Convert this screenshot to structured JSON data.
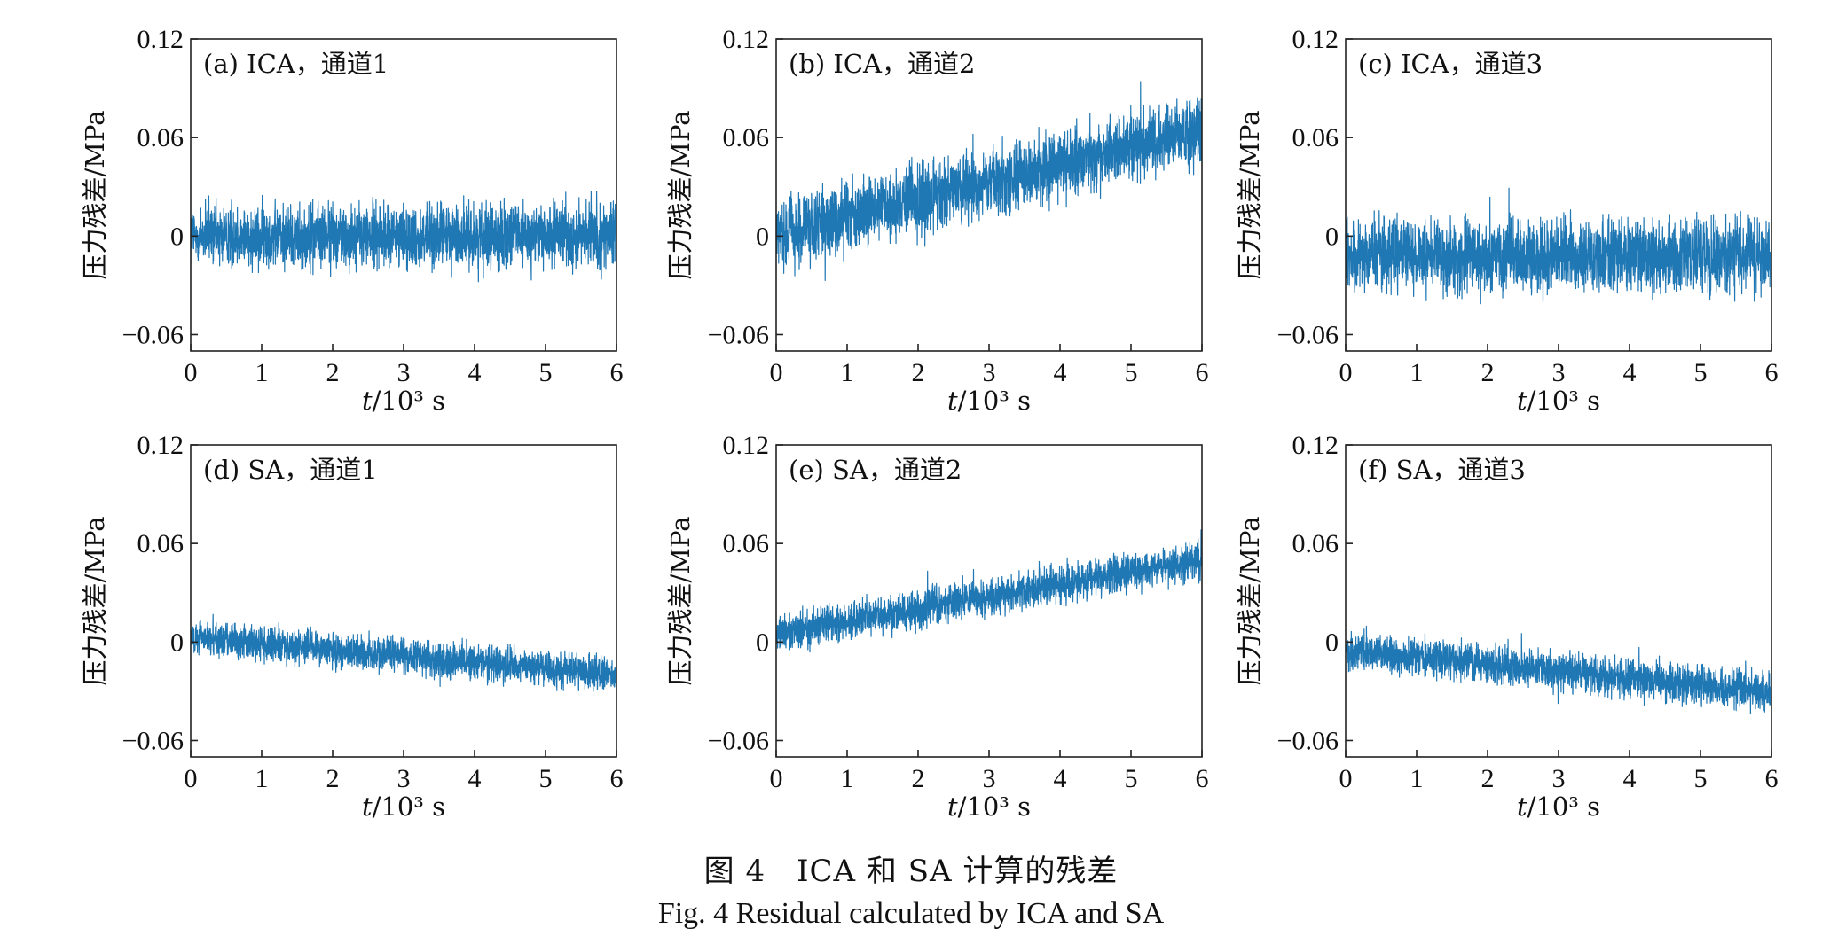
{
  "caption": {
    "cn": "图 4　ICA 和 SA 计算的残差",
    "en": "Fig. 4  Residual calculated by ICA and SA"
  },
  "chart_data": [
    {
      "type": "line",
      "panel_label": "(a) ICA，通道1",
      "xlabel_var": "t",
      "xlabel_unit": "/10³ s",
      "ylabel": "压力残差/MPa",
      "xlim": [
        0,
        6
      ],
      "ylim": [
        -0.07,
        0.12
      ],
      "xticks": [
        0,
        1,
        2,
        3,
        4,
        5,
        6
      ],
      "xtick_labels": [
        "0",
        "1",
        "2",
        "3",
        "4",
        "5",
        "6"
      ],
      "yticks": [
        -0.06,
        0,
        0.06,
        0.12
      ],
      "ytick_labels": [
        "−0.06",
        "0",
        "0.06",
        "0.12"
      ],
      "trend": {
        "x": [
          0,
          6
        ],
        "y": [
          0,
          0
        ]
      },
      "noise_band_half_width": 0.028,
      "color": "#1f77b4"
    },
    {
      "type": "line",
      "panel_label": "(b) ICA，通道2",
      "xlabel_var": "t",
      "xlabel_unit": "/10³ s",
      "ylabel": "压力残差/MPa",
      "xlim": [
        0,
        6
      ],
      "ylim": [
        -0.07,
        0.12
      ],
      "xticks": [
        0,
        1,
        2,
        3,
        4,
        5,
        6
      ],
      "xtick_labels": [
        "0",
        "1",
        "2",
        "3",
        "4",
        "5",
        "6"
      ],
      "yticks": [
        -0.06,
        0,
        0.06,
        0.12
      ],
      "ytick_labels": [
        "−0.06",
        "0",
        "0.06",
        "0.12"
      ],
      "trend": {
        "x": [
          0,
          6
        ],
        "y": [
          0,
          0.065
        ]
      },
      "noise_band_half_width": 0.03,
      "color": "#1f77b4"
    },
    {
      "type": "line",
      "panel_label": "(c) ICA，通道3",
      "xlabel_var": "t",
      "xlabel_unit": "/10³ s",
      "ylabel": "压力残差/MPa",
      "xlim": [
        0,
        6
      ],
      "ylim": [
        -0.07,
        0.12
      ],
      "xticks": [
        0,
        1,
        2,
        3,
        4,
        5,
        6
      ],
      "xtick_labels": [
        "0",
        "1",
        "2",
        "3",
        "4",
        "5",
        "6"
      ],
      "yticks": [
        -0.06,
        0,
        0.06,
        0.12
      ],
      "ytick_labels": [
        "−0.06",
        "0",
        "0.06",
        "0.12"
      ],
      "trend": {
        "x": [
          0,
          6
        ],
        "y": [
          -0.012,
          -0.012
        ]
      },
      "noise_band_half_width": 0.032,
      "color": "#1f77b4"
    },
    {
      "type": "line",
      "panel_label": "(d) SA，通道1",
      "xlabel_var": "t",
      "xlabel_unit": "/10³ s",
      "ylabel": "压力残差/MPa",
      "xlim": [
        0,
        6
      ],
      "ylim": [
        -0.07,
        0.12
      ],
      "xticks": [
        0,
        1,
        2,
        3,
        4,
        5,
        6
      ],
      "xtick_labels": [
        "0",
        "1",
        "2",
        "3",
        "4",
        "5",
        "6"
      ],
      "yticks": [
        -0.06,
        0,
        0.06,
        0.12
      ],
      "ytick_labels": [
        "−0.06",
        "0",
        "0.06",
        "0.12"
      ],
      "trend": {
        "x": [
          0,
          6
        ],
        "y": [
          0.003,
          -0.02
        ]
      },
      "noise_band_half_width": 0.015,
      "color": "#1f77b4"
    },
    {
      "type": "line",
      "panel_label": "(e) SA，通道2",
      "xlabel_var": "t",
      "xlabel_unit": "/10³ s",
      "ylabel": "压力残差/MPa",
      "xlim": [
        0,
        6
      ],
      "ylim": [
        -0.07,
        0.12
      ],
      "xticks": [
        0,
        1,
        2,
        3,
        4,
        5,
        6
      ],
      "xtick_labels": [
        "0",
        "1",
        "2",
        "3",
        "4",
        "5",
        "6"
      ],
      "yticks": [
        -0.06,
        0,
        0.06,
        0.12
      ],
      "ytick_labels": [
        "−0.06",
        "0",
        "0.06",
        "0.12"
      ],
      "trend": {
        "x": [
          0,
          6
        ],
        "y": [
          0.005,
          0.05
        ]
      },
      "noise_band_half_width": 0.016,
      "color": "#1f77b4"
    },
    {
      "type": "line",
      "panel_label": "(f) SA，通道3",
      "xlabel_var": "t",
      "xlabel_unit": "/10³ s",
      "ylabel": "压力残差/MPa",
      "xlim": [
        0,
        6
      ],
      "ylim": [
        -0.07,
        0.12
      ],
      "xticks": [
        0,
        1,
        2,
        3,
        4,
        5,
        6
      ],
      "xtick_labels": [
        "0",
        "1",
        "2",
        "3",
        "4",
        "5",
        "6"
      ],
      "yticks": [
        -0.06,
        0,
        0.06,
        0.12
      ],
      "ytick_labels": [
        "−0.06",
        "0",
        "0.06",
        "0.12"
      ],
      "trend": {
        "x": [
          0,
          6
        ],
        "y": [
          -0.005,
          -0.03
        ]
      },
      "noise_band_half_width": 0.017,
      "color": "#1f77b4"
    }
  ]
}
